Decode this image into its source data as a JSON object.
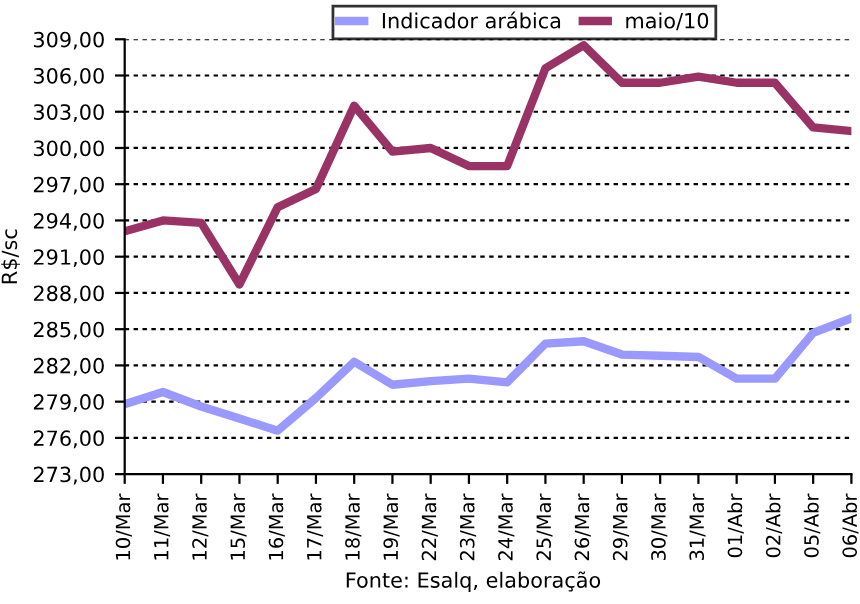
{
  "chart_data": {
    "type": "line",
    "ylabel": "R$/sc",
    "categories": [
      "10/Mar",
      "11/Mar",
      "12/Mar",
      "15/Mar",
      "16/Mar",
      "17/Mar",
      "18/Mar",
      "19/Mar",
      "22/Mar",
      "23/Mar",
      "24/Mar",
      "25/Mar",
      "26/Mar",
      "29/Mar",
      "30/Mar",
      "31/Mar",
      "01/Abr",
      "02/Abr",
      "05/Abr",
      "06/Abr"
    ],
    "series": [
      {
        "name": "Indicador arábica",
        "color": "#9999ff",
        "values": [
          278.8,
          279.8,
          278.6,
          277.6,
          276.6,
          279.3,
          282.3,
          280.4,
          280.7,
          280.9,
          280.6,
          283.8,
          284.0,
          282.9,
          282.8,
          282.7,
          280.9,
          280.9,
          284.7,
          285.9
        ]
      },
      {
        "name": "maio/10",
        "color": "#993366",
        "values": [
          293.1,
          294.0,
          293.8,
          288.7,
          295.1,
          296.6,
          303.5,
          299.7,
          300.0,
          298.5,
          298.5,
          306.6,
          308.5,
          305.4,
          305.4,
          305.9,
          305.4,
          305.4,
          301.7,
          301.4
        ]
      }
    ],
    "ylim": [
      273,
      309
    ],
    "yticks": [
      {
        "value": 273,
        "label": "273,00"
      },
      {
        "value": 276,
        "label": "276,00"
      },
      {
        "value": 279,
        "label": "279,00"
      },
      {
        "value": 282,
        "label": "282,00"
      },
      {
        "value": 285,
        "label": "285,00"
      },
      {
        "value": 288,
        "label": "288,00"
      },
      {
        "value": 291,
        "label": "291,00"
      },
      {
        "value": 294,
        "label": "294,00"
      },
      {
        "value": 297,
        "label": "297,00"
      },
      {
        "value": 300,
        "label": "300,00"
      },
      {
        "value": 303,
        "label": "303,00"
      },
      {
        "value": 306,
        "label": "306,00"
      },
      {
        "value": 309,
        "label": "309,00"
      }
    ],
    "grid": "y",
    "legend": "top",
    "marker": "none",
    "line_style": "solid",
    "annotations": [
      "Fonte: Esalq, elaboração"
    ]
  }
}
